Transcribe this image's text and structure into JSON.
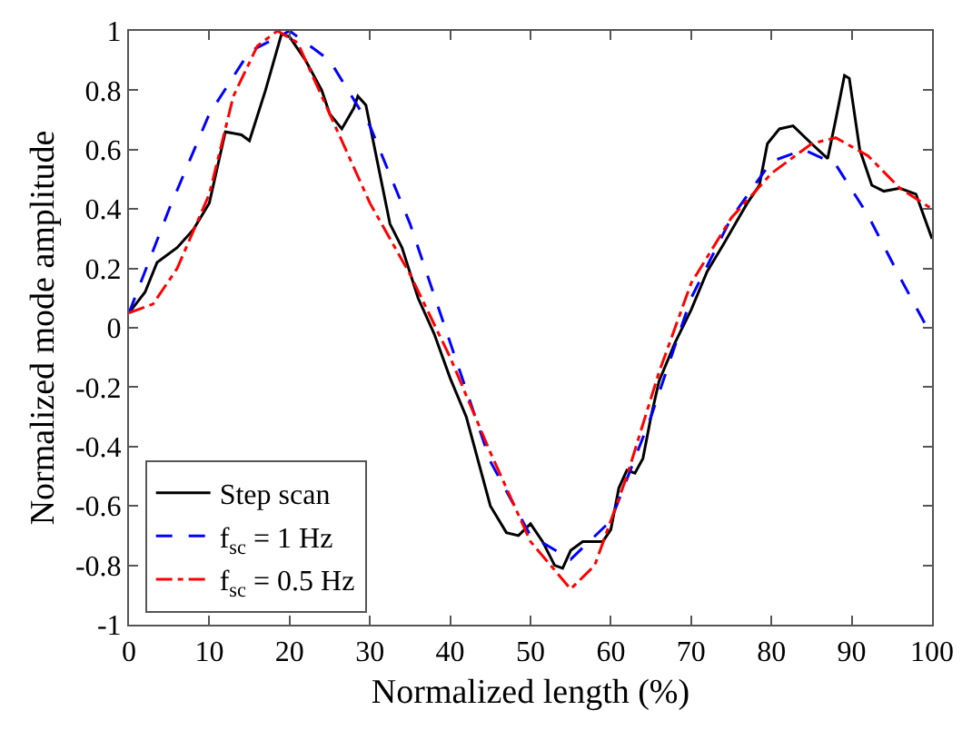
{
  "chart_data": {
    "type": "line",
    "xlabel": "Normalized length (%)",
    "ylabel": "Normalized mode amplitude",
    "xlim": [
      0,
      100
    ],
    "ylim": [
      -1,
      1
    ],
    "xticks": [
      0,
      10,
      20,
      30,
      40,
      50,
      60,
      70,
      80,
      90,
      100
    ],
    "yticks": [
      -1,
      -0.8,
      -0.6,
      -0.4,
      -0.2,
      0,
      0.2,
      0.4,
      0.6,
      0.8,
      1
    ],
    "grid": false,
    "legend": "bottom left",
    "marker": "none",
    "series": [
      {
        "name": "Step scan",
        "color": "#000000",
        "line_style": "solid",
        "x": [
          0,
          2,
          3.5,
          6,
          8,
          10,
          12,
          14,
          15,
          17,
          19,
          20,
          22,
          24,
          25,
          26.5,
          28,
          28.5,
          29.5,
          31,
          32.5,
          34,
          36,
          38,
          40,
          42,
          44,
          45,
          47,
          48.5,
          50,
          51.5,
          53,
          54,
          55,
          56.5,
          59,
          60,
          61,
          62,
          63,
          64,
          65,
          66,
          68,
          70,
          72,
          74,
          75.5,
          77,
          78.5,
          79.5,
          81,
          82.7,
          85,
          87,
          88,
          89.1,
          89.7,
          91,
          92.5,
          94,
          96,
          98,
          100
        ],
        "values": [
          0.05,
          0.12,
          0.22,
          0.27,
          0.33,
          0.42,
          0.66,
          0.65,
          0.63,
          0.8,
          0.99,
          0.98,
          0.9,
          0.8,
          0.72,
          0.67,
          0.74,
          0.78,
          0.75,
          0.55,
          0.35,
          0.27,
          0.1,
          -0.02,
          -0.17,
          -0.3,
          -0.5,
          -0.6,
          -0.69,
          -0.7,
          -0.66,
          -0.72,
          -0.8,
          -0.81,
          -0.75,
          -0.72,
          -0.72,
          -0.68,
          -0.54,
          -0.48,
          -0.49,
          -0.44,
          -0.3,
          -0.18,
          -0.05,
          0.06,
          0.19,
          0.28,
          0.35,
          0.42,
          0.48,
          0.62,
          0.67,
          0.68,
          0.62,
          0.57,
          0.7,
          0.85,
          0.84,
          0.6,
          0.48,
          0.46,
          0.47,
          0.45,
          0.3
        ]
      },
      {
        "name": "f$_{sc}$ = 1 Hz",
        "color": "#0000ff",
        "line_style": "dashed",
        "x": [
          0,
          5,
          10,
          15,
          20,
          25,
          30,
          35,
          40,
          45,
          50,
          55,
          60,
          65,
          70,
          75,
          80,
          84,
          88,
          92,
          96,
          100
        ],
        "values": [
          0.05,
          0.4,
          0.72,
          0.93,
          1.0,
          0.9,
          0.68,
          0.35,
          -0.05,
          -0.45,
          -0.7,
          -0.78,
          -0.65,
          -0.3,
          0.1,
          0.37,
          0.56,
          0.6,
          0.55,
          0.38,
          0.17,
          -0.03
        ]
      },
      {
        "name": "f$_{sc}$ = 0.5 Hz",
        "color": "#ff0000",
        "line_style": "dashdot",
        "x": [
          0,
          3,
          6,
          10,
          13,
          16,
          18.5,
          21,
          25,
          30,
          35,
          40,
          45,
          50,
          55,
          58,
          62,
          66,
          70,
          75,
          80,
          85,
          88,
          92,
          96,
          100
        ],
        "values": [
          0.05,
          0.08,
          0.2,
          0.45,
          0.78,
          0.95,
          1.0,
          0.96,
          0.72,
          0.42,
          0.18,
          -0.1,
          -0.42,
          -0.72,
          -0.88,
          -0.8,
          -0.5,
          -0.15,
          0.15,
          0.37,
          0.52,
          0.62,
          0.64,
          0.58,
          0.47,
          0.4
        ]
      }
    ]
  }
}
